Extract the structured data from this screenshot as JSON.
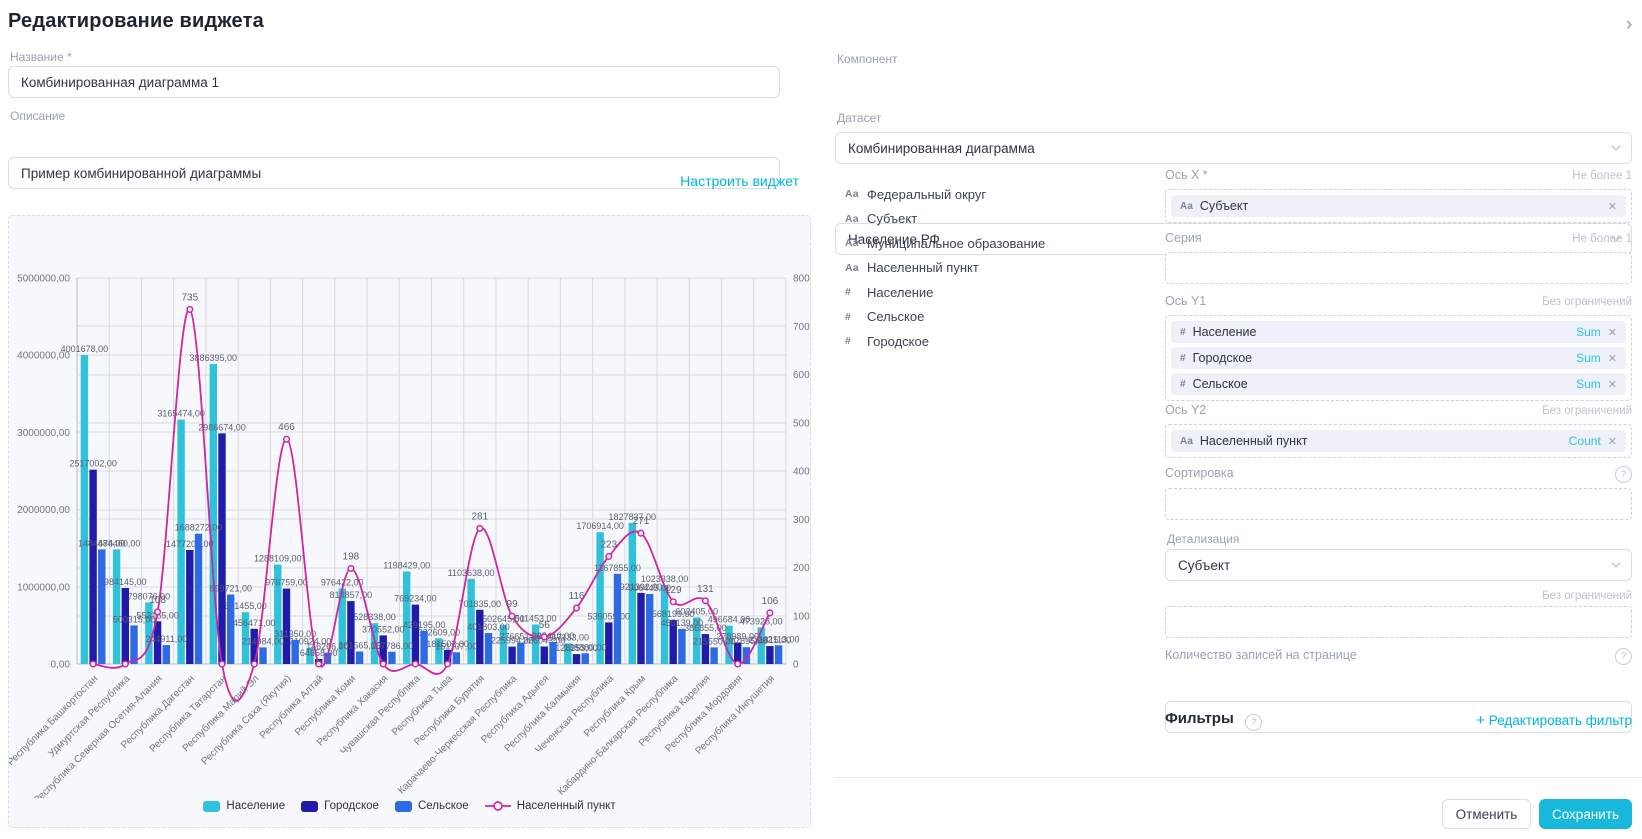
{
  "page": {
    "title": "Редактирование виджета",
    "collapse_icon": "›"
  },
  "form": {
    "name_label": "Название *",
    "name_value": "Комбинированная диаграмма 1",
    "description_label": "Описание",
    "description_value": "Пример комбинированной диаграммы",
    "configure_link": "Настроить виджет",
    "component_label": "Компонент",
    "component_value": "Комбинированная диаграмма",
    "dataset_label": "Датасет",
    "dataset_value": "Население РФ"
  },
  "fields_list": [
    {
      "icon": "Аа",
      "label": "Федеральный округ"
    },
    {
      "icon": "Аа",
      "label": "Субъект"
    },
    {
      "icon": "Аа",
      "label": "Муниципальное образование"
    },
    {
      "icon": "Аа",
      "label": "Населенный пункт"
    },
    {
      "icon": "#",
      "label": "Население"
    },
    {
      "icon": "#",
      "label": "Сельское"
    },
    {
      "icon": "#",
      "label": "Городское"
    }
  ],
  "axes": {
    "x": {
      "label": "Ось X *",
      "limit": "Не более 1",
      "chips": [
        {
          "icon": "Аа",
          "label": "Субъект",
          "agg": null
        }
      ]
    },
    "series": {
      "label": "Серия",
      "limit": "Не более 1",
      "chips": []
    },
    "y1": {
      "label": "Ось Y1",
      "limit": "Без ограничений",
      "chips": [
        {
          "icon": "#",
          "label": "Население",
          "agg": "Sum"
        },
        {
          "icon": "#",
          "label": "Городское",
          "agg": "Sum"
        },
        {
          "icon": "#",
          "label": "Сельское",
          "agg": "Sum"
        }
      ]
    },
    "y2": {
      "label": "Ось Y2",
      "limit": "Без ограничений",
      "chips": [
        {
          "icon": "Аа",
          "label": "Населенный пункт",
          "agg": "Count"
        }
      ]
    },
    "sorting": {
      "label": "Сортировка",
      "chips": []
    },
    "detail_label": "Детализация",
    "detail_value": "Субъект",
    "detail_limit": "Без ограничений",
    "page_size_label": "Количество записей на странице",
    "page_size_value": "",
    "filters_label": "Фильтры",
    "edit_filter_link": "Редактировать фильтр"
  },
  "buttons": {
    "cancel": "Отменить",
    "save": "Сохранить"
  },
  "colors": {
    "accent": "#00b5dc",
    "save_bg": "#17b8dc"
  },
  "chart_data": {
    "type": "bar",
    "title": "",
    "xlabel": "",
    "ylabel_left": "",
    "ylabel_right": "",
    "grid": true,
    "legend_position": "bottom",
    "y_left": {
      "min": 0,
      "max": 5000000,
      "tick_step": 1000000,
      "format": "0,00"
    },
    "y_right": {
      "min": 0,
      "max": 800,
      "tick_step": 100
    },
    "categories": [
      "Республика Башкортостан",
      "Удмуртская Республика",
      "Республика Северная Осетия-Алания",
      "Республика Дагестан",
      "Республика Татарстан",
      "Республика Марий Эл",
      "Республика Саха (Якутия)",
      "Республика Алтай",
      "Республика Коми",
      "Республика Хакасия",
      "Чувашская Республика",
      "Республика Тыва",
      "Республика Бурятия",
      "Карачаево-Черкесская Республика",
      "Республика Адыгея",
      "Республика Калмыкия",
      "Чеченская Республика",
      "Республика Крым",
      "Кабардино-Балкарская Республика",
      "Республика Карелия",
      "Республика Мордовия",
      "Республика Ингушетия"
    ],
    "series": [
      {
        "name": "Население",
        "type": "bar",
        "axis": "y1",
        "color": "#2fc2da",
        "values": [
          4001678,
          1484460,
          798076,
          3165474,
          3886395,
          671455,
          1288109,
          210924,
          976422,
          528338,
          1198429,
          332609,
          1103638,
          502645,
          511453,
          267133,
          1706914,
          1827837,
          1023338,
          602405,
          496684,
          473928
        ]
      },
      {
        "name": "Городское",
        "type": "bar",
        "axis": "y1",
        "color": "#201baa",
        "values": [
          2517002,
          984145,
          553165,
          1477202,
          2986674,
          456471,
          976759,
          64658,
          814857,
          370552,
          769234,
          181502,
          701835,
          225994,
          226043,
          128253,
          539059,
          921392,
          568199,
          386855,
          278989,
          231815
        ]
      },
      {
        "name": "Сельское",
        "type": "bar",
        "axis": "y1",
        "color": "#2e6ae2",
        "values": [
          1484676,
          500315,
          244911,
          1688272,
          899721,
          214984,
          311350,
          146266,
          161565,
          157786,
          429195,
          151107,
          401803,
          276651,
          285410,
          138880,
          1167855,
          906445,
          455139,
          215550,
          217695,
          242113
        ]
      },
      {
        "name": "Населенный пункт",
        "type": "line",
        "axis": "y2",
        "color": "#ce26a6",
        "values": [
          0,
          0,
          108,
          735,
          0,
          0,
          466,
          0,
          198,
          0,
          0,
          0,
          281,
          99,
          56,
          116,
          223,
          271,
          129,
          131,
          0,
          106
        ]
      }
    ]
  }
}
